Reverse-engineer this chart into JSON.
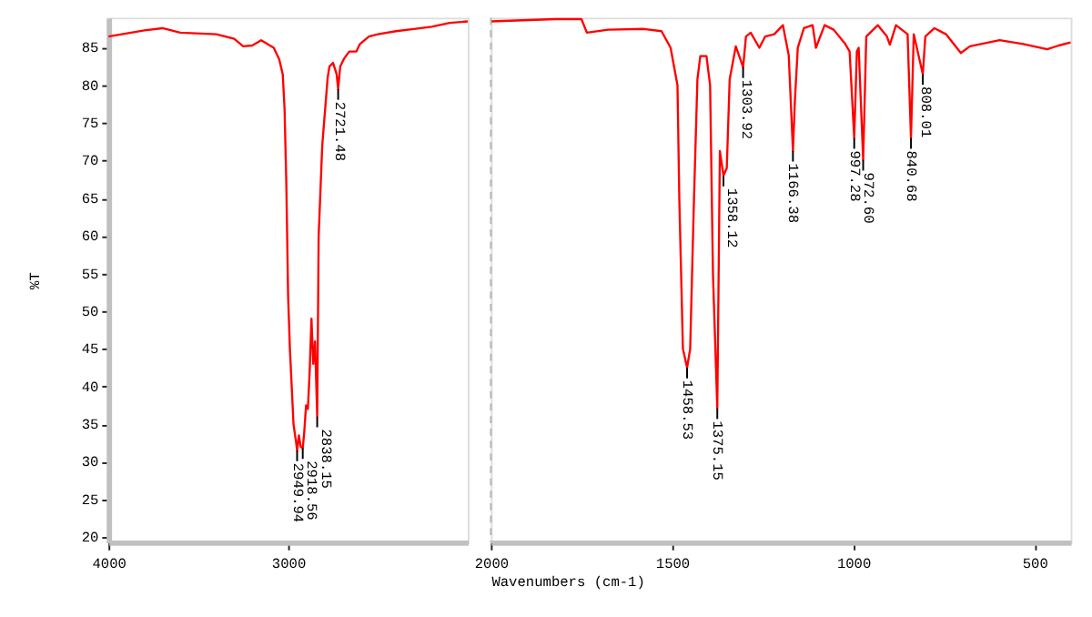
{
  "chart_data": [
    {
      "type": "line",
      "ylabel": "%T",
      "xlim": [
        4000,
        2000
      ],
      "ylim": [
        19.3,
        89
      ],
      "xticks": [
        4000,
        3000
      ],
      "yticks": [
        20,
        25,
        30,
        35,
        40,
        45,
        50,
        55,
        60,
        65,
        70,
        75,
        80,
        85
      ],
      "grid": false,
      "x": [
        4000,
        3800,
        3700,
        3600,
        3400,
        3300,
        3250,
        3200,
        3150,
        3080,
        3050,
        3030,
        3020,
        3010,
        3000,
        2990,
        2980,
        2970,
        2955,
        2949.94,
        2940,
        2930,
        2918.56,
        2910,
        2900,
        2890,
        2880,
        2870,
        2860,
        2850,
        2838.15,
        2830,
        2820,
        2810,
        2800,
        2790,
        2780,
        2770,
        2750,
        2730,
        2721.48,
        2710,
        2690,
        2660,
        2620,
        2600,
        2550,
        2500,
        2400,
        2300,
        2200,
        2100,
        2000
      ],
      "series": [
        {
          "color": "#ff0000",
          "values": [
            86.5,
            87.3,
            87.6,
            87.0,
            86.8,
            86.2,
            85.2,
            85.3,
            86.0,
            85.0,
            83.5,
            81.5,
            77,
            67,
            52,
            45,
            40,
            35,
            32.5,
            31.5,
            33.5,
            32,
            31.8,
            34,
            37.5,
            37,
            42,
            49,
            43,
            46,
            36.0,
            60,
            66,
            72,
            75,
            78,
            81,
            82.5,
            83,
            81.5,
            79.5,
            82.5,
            83.5,
            84.5,
            84.5,
            85.5,
            86.5,
            86.8,
            87.2,
            87.5,
            87.8,
            88.3,
            88.5
          ]
        }
      ],
      "annotations": [
        {
          "text": "2949.94",
          "x": 2949.94,
          "y": 31.5
        },
        {
          "text": "2918.56",
          "x": 2918.56,
          "y": 31.8
        },
        {
          "text": "2838.15",
          "x": 2838.15,
          "y": 36.0
        },
        {
          "text": "2721.48",
          "x": 2721.48,
          "y": 79.5
        }
      ]
    },
    {
      "type": "line",
      "xlabel": "Wavenumbers (cm-1)",
      "xlim": [
        2000,
        400
      ],
      "ylim": [
        19.3,
        89
      ],
      "xticks": [
        2000,
        1500,
        1000,
        500
      ],
      "tick_labels": "x",
      "grid": false,
      "x": [
        2000,
        1823,
        1750,
        1735,
        1676,
        1578,
        1529,
        1504,
        1485,
        1480,
        1470,
        1458.53,
        1450,
        1440,
        1430,
        1422,
        1405,
        1395,
        1387,
        1375.15,
        1368,
        1358.12,
        1349,
        1341,
        1324,
        1303.92,
        1296,
        1283,
        1259,
        1243,
        1218,
        1194,
        1178,
        1166.38,
        1161,
        1153,
        1136,
        1112,
        1103,
        1079,
        1054,
        1022,
        1010,
        997.28,
        990,
        985,
        972.6,
        964,
        932,
        907,
        899,
        882,
        850,
        840.68,
        833,
        808.01,
        801,
        776,
        744,
        703,
        678,
        596,
        531,
        465,
        433,
        400
      ],
      "series": [
        {
          "color": "#ff0000",
          "values": [
            88.5,
            88.8,
            88.8,
            87.0,
            87.4,
            87.5,
            87.2,
            85,
            80,
            65,
            45,
            42.5,
            45,
            64,
            80.8,
            83.9,
            83.9,
            80,
            54.8,
            37.1,
            71.3,
            68,
            69,
            80.8,
            85.2,
            82.4,
            86.5,
            87,
            85,
            86.5,
            86.8,
            88,
            84,
            71.3,
            78,
            85,
            87.6,
            88,
            85,
            88,
            87.4,
            85.5,
            84.5,
            73,
            84.5,
            85,
            70.1,
            86.5,
            88,
            86.5,
            85.4,
            88,
            86.8,
            73,
            86.8,
            81.5,
            86.5,
            87.6,
            86.8,
            84.3,
            85.2,
            86.0,
            85.5,
            84.8,
            85.3,
            85.7
          ]
        }
      ],
      "ref_lines": [
        {
          "axis": "x",
          "value": 2000,
          "label": null,
          "color": "#b4b4b4",
          "line_style": "dashed"
        }
      ],
      "annotations": [
        {
          "text": "1458.53",
          "x": 1458.53,
          "y": 42.5
        },
        {
          "text": "1375.15",
          "x": 1375.15,
          "y": 37.1
        },
        {
          "text": "1358.12",
          "x": 1358.12,
          "y": 68
        },
        {
          "text": "1303.92",
          "x": 1303.92,
          "y": 82.4
        },
        {
          "text": "1166.38",
          "x": 1166.38,
          "y": 71.3
        },
        {
          "text": "997.28",
          "x": 997.28,
          "y": 73
        },
        {
          "text": "972.60",
          "x": 972.6,
          "y": 70.1
        },
        {
          "text": "840.68",
          "x": 840.68,
          "y": 73
        },
        {
          "text": "808.01",
          "x": 808.01,
          "y": 81.5
        }
      ]
    }
  ]
}
